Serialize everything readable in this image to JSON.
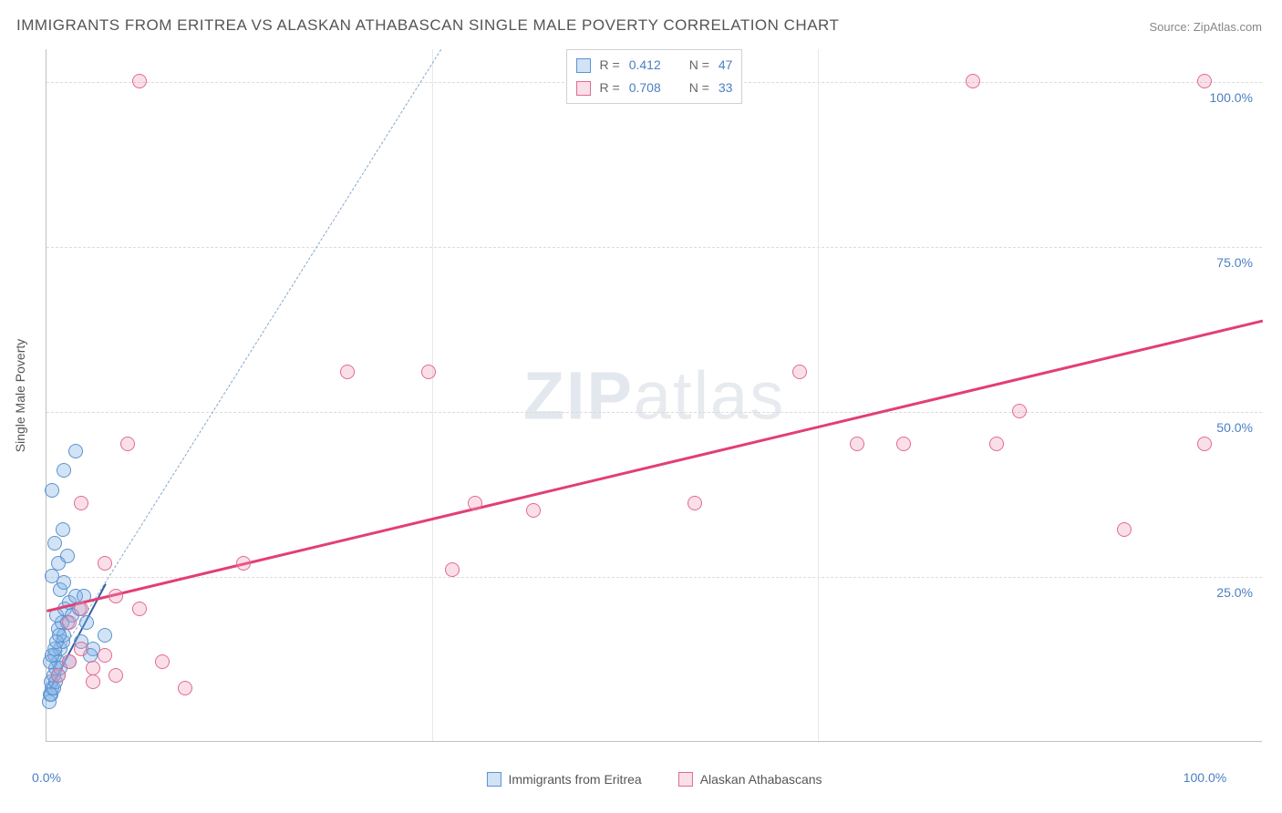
{
  "title": "IMMIGRANTS FROM ERITREA VS ALASKAN ATHABASCAN SINGLE MALE POVERTY CORRELATION CHART",
  "source_label": "Source: ZipAtlas.com",
  "watermark": {
    "bold": "ZIP",
    "rest": "atlas"
  },
  "y_axis_title": "Single Male Poverty",
  "chart": {
    "type": "scatter",
    "background_color": "#ffffff",
    "grid_color": "#dcdcdc",
    "axis_color": "#c0c0c0",
    "xlim": [
      0,
      105
    ],
    "ylim": [
      0,
      105
    ],
    "y_ticks": [
      25,
      50,
      75,
      100
    ],
    "y_tick_labels": [
      "25.0%",
      "50.0%",
      "75.0%",
      "100.0%"
    ],
    "x_ticks_minor": [
      33.3,
      66.6
    ],
    "x_tick_0_label": "0.0%",
    "x_tick_100_label": "100.0%",
    "marker_radius": 8,
    "marker_stroke_width": 1,
    "series": [
      {
        "name": "Immigrants from Eritrea",
        "legend_key": "series1_label",
        "color_fill": "rgba(127,176,229,0.35)",
        "color_stroke": "#5a93cf",
        "R": "0.412",
        "N": "47",
        "regression": {
          "x1": 0.2,
          "y1": 8,
          "x2": 5,
          "y2": 24,
          "color": "#2f5fa3",
          "width": 2,
          "dash": "none"
        },
        "guide_dash": {
          "x1": 1,
          "y1": 13,
          "x2": 34,
          "y2": 105,
          "color": "#8aa8c8",
          "width": 1,
          "dash": "6,5"
        },
        "points": [
          [
            0.3,
            7
          ],
          [
            0.5,
            8
          ],
          [
            0.4,
            9
          ],
          [
            0.6,
            10
          ],
          [
            0.8,
            11
          ],
          [
            1.0,
            12
          ],
          [
            0.7,
            13
          ],
          [
            1.2,
            14
          ],
          [
            1.4,
            15
          ],
          [
            1.5,
            16
          ],
          [
            1.0,
            17
          ],
          [
            1.3,
            18
          ],
          [
            1.8,
            18
          ],
          [
            0.9,
            19
          ],
          [
            1.6,
            20
          ],
          [
            2.0,
            21
          ],
          [
            2.5,
            22
          ],
          [
            1.2,
            23
          ],
          [
            1.5,
            24
          ],
          [
            0.5,
            25
          ],
          [
            1.0,
            27
          ],
          [
            1.8,
            28
          ],
          [
            0.7,
            30
          ],
          [
            1.4,
            32
          ],
          [
            2.0,
            12
          ],
          [
            3.0,
            15
          ],
          [
            3.5,
            18
          ],
          [
            4.0,
            14
          ],
          [
            5.0,
            16
          ],
          [
            2.2,
            19
          ],
          [
            0.2,
            6
          ],
          [
            0.4,
            7
          ],
          [
            0.6,
            8
          ],
          [
            0.8,
            9
          ],
          [
            1.0,
            10
          ],
          [
            1.2,
            11
          ],
          [
            0.3,
            12
          ],
          [
            0.5,
            13
          ],
          [
            0.7,
            14
          ],
          [
            0.9,
            15
          ],
          [
            1.1,
            16
          ],
          [
            0.5,
            38
          ],
          [
            1.5,
            41
          ],
          [
            2.5,
            44
          ],
          [
            2.8,
            20
          ],
          [
            3.2,
            22
          ],
          [
            3.8,
            13
          ]
        ]
      },
      {
        "name": "Alaskan Athabascans",
        "legend_key": "series2_label",
        "color_fill": "rgba(242,148,178,0.30)",
        "color_stroke": "#e06a93",
        "R": "0.708",
        "N": "33",
        "regression": {
          "x1": 0,
          "y1": 20,
          "x2": 105,
          "y2": 64,
          "color": "#e23f72",
          "width": 3,
          "dash": "none"
        },
        "points": [
          [
            1,
            10
          ],
          [
            2,
            12
          ],
          [
            3,
            14
          ],
          [
            4,
            11
          ],
          [
            5,
            13
          ],
          [
            2,
            18
          ],
          [
            3,
            20
          ],
          [
            6,
            22
          ],
          [
            8,
            20
          ],
          [
            4,
            9
          ],
          [
            6,
            10
          ],
          [
            10,
            12
          ],
          [
            3,
            36
          ],
          [
            5,
            27
          ],
          [
            7,
            45
          ],
          [
            17,
            27
          ],
          [
            26,
            56
          ],
          [
            33,
            56
          ],
          [
            35,
            26
          ],
          [
            37,
            36
          ],
          [
            42,
            35
          ],
          [
            56,
            36
          ],
          [
            65,
            56
          ],
          [
            70,
            45
          ],
          [
            74,
            45
          ],
          [
            80,
            100
          ],
          [
            84,
            50
          ],
          [
            82,
            45
          ],
          [
            93,
            32
          ],
          [
            100,
            100
          ],
          [
            100,
            45
          ],
          [
            12,
            8
          ],
          [
            8,
            100
          ]
        ]
      }
    ]
  },
  "legend_top": {
    "R_prefix": "R =",
    "N_prefix": "N ="
  },
  "legend_bottom": {
    "series1_label": "Immigrants from Eritrea",
    "series2_label": "Alaskan Athabascans"
  }
}
